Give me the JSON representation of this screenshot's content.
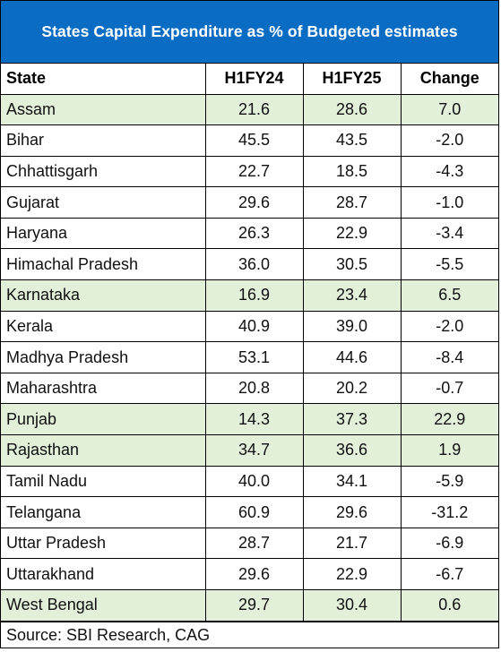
{
  "title": "States Capital Expenditure as % of Budgeted estimates",
  "columns": [
    "State",
    "H1FY24",
    "H1FY25",
    "Change"
  ],
  "rows": [
    {
      "state": "Assam",
      "h1fy24": "21.6",
      "h1fy25": "28.6",
      "change": "7.0",
      "highlight": true
    },
    {
      "state": "Bihar",
      "h1fy24": "45.5",
      "h1fy25": "43.5",
      "change": "-2.0",
      "highlight": false
    },
    {
      "state": "Chhattisgarh",
      "h1fy24": "22.7",
      "h1fy25": "18.5",
      "change": "-4.3",
      "highlight": false
    },
    {
      "state": "Gujarat",
      "h1fy24": "29.6",
      "h1fy25": "28.7",
      "change": "-1.0",
      "highlight": false
    },
    {
      "state": "Haryana",
      "h1fy24": "26.3",
      "h1fy25": "22.9",
      "change": "-3.4",
      "highlight": false
    },
    {
      "state": "Himachal Pradesh",
      "h1fy24": "36.0",
      "h1fy25": "30.5",
      "change": "-5.5",
      "highlight": false
    },
    {
      "state": "Karnataka",
      "h1fy24": "16.9",
      "h1fy25": "23.4",
      "change": "6.5",
      "highlight": true
    },
    {
      "state": "Kerala",
      "h1fy24": "40.9",
      "h1fy25": "39.0",
      "change": "-2.0",
      "highlight": false
    },
    {
      "state": "Madhya Pradesh",
      "h1fy24": "53.1",
      "h1fy25": "44.6",
      "change": "-8.4",
      "highlight": false
    },
    {
      "state": "Maharashtra",
      "h1fy24": "20.8",
      "h1fy25": "20.2",
      "change": "-0.7",
      "highlight": false
    },
    {
      "state": "Punjab",
      "h1fy24": "14.3",
      "h1fy25": "37.3",
      "change": "22.9",
      "highlight": true
    },
    {
      "state": "Rajasthan",
      "h1fy24": "34.7",
      "h1fy25": "36.6",
      "change": "1.9",
      "highlight": true
    },
    {
      "state": "Tamil Nadu",
      "h1fy24": "40.0",
      "h1fy25": "34.1",
      "change": "-5.9",
      "highlight": false
    },
    {
      "state": "Telangana",
      "h1fy24": "60.9",
      "h1fy25": "29.6",
      "change": "-31.2",
      "highlight": false
    },
    {
      "state": "Uttar Pradesh",
      "h1fy24": "28.7",
      "h1fy25": "21.7",
      "change": "-6.9",
      "highlight": false
    },
    {
      "state": "Uttarakhand",
      "h1fy24": "29.6",
      "h1fy25": "22.9",
      "change": "-6.7",
      "highlight": false
    },
    {
      "state": "West Bengal",
      "h1fy24": "29.7",
      "h1fy25": "30.4",
      "change": "0.6",
      "highlight": true
    }
  ],
  "source": "Source: SBI Research, CAG",
  "colors": {
    "title_bg": "#0b6cc4",
    "title_text": "#ffffff",
    "highlight_row": "#e2efd9"
  }
}
